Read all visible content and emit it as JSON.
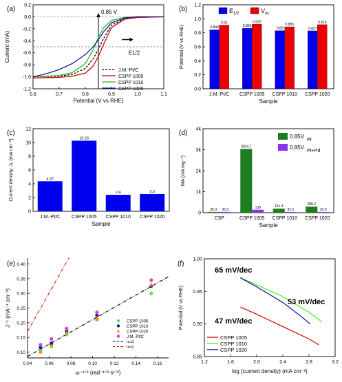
{
  "chart_data": [
    {
      "panel": "(a)",
      "type": "line",
      "xlabel": "Potential (V vs RHE)",
      "ylabel": "Current (mA)",
      "xlim": [
        0.6,
        1.1
      ],
      "ylim": [
        -1.2,
        0.2
      ],
      "x_ticks": [
        "0.6",
        "0.7",
        "0.8",
        "0.9",
        "1.0",
        "1.1"
      ],
      "y_ticks": [
        "0.2",
        "0.0",
        "-0.2",
        "-0.4",
        "-0.6",
        "-0.8",
        "-1.0",
        "-1.2"
      ],
      "annotations": [
        "0.85 V",
        "E1/2"
      ],
      "series": [
        {
          "name": "J.M.-Pt/C",
          "color": "#000000",
          "dash": true,
          "x": [
            0.6,
            0.7,
            0.75,
            0.8,
            0.83,
            0.85,
            0.87,
            0.9,
            0.95,
            1.0,
            1.1
          ],
          "y": [
            -1.0,
            -0.99,
            -0.96,
            -0.86,
            -0.7,
            -0.54,
            -0.36,
            -0.14,
            -0.03,
            -0.01,
            0.0
          ]
        },
        {
          "name": "CSPP 1005",
          "color": "#cc0000",
          "x": [
            0.6,
            0.7,
            0.75,
            0.8,
            0.83,
            0.85,
            0.87,
            0.9,
            0.95,
            1.0,
            1.1
          ],
          "y": [
            -1.02,
            -1.01,
            -0.99,
            -0.94,
            -0.82,
            -0.66,
            -0.46,
            -0.18,
            -0.04,
            -0.01,
            0.0
          ]
        },
        {
          "name": "CSPP 1010",
          "color": "#22bb22",
          "x": [
            0.6,
            0.7,
            0.75,
            0.8,
            0.83,
            0.85,
            0.87,
            0.9,
            0.95,
            1.0,
            1.1
          ],
          "y": [
            -1.0,
            -0.98,
            -0.93,
            -0.78,
            -0.55,
            -0.34,
            -0.18,
            -0.06,
            -0.01,
            0.0,
            0.0
          ]
        },
        {
          "name": "CSPP 1020",
          "color": "#1a1aa0",
          "x": [
            0.6,
            0.65,
            0.7,
            0.75,
            0.8,
            0.83,
            0.85,
            0.87,
            0.9,
            0.95,
            1.0,
            1.1
          ],
          "y": [
            -1.0,
            -0.95,
            -0.88,
            -0.78,
            -0.63,
            -0.5,
            -0.38,
            -0.25,
            -0.1,
            -0.02,
            0.0,
            0.0
          ]
        }
      ]
    },
    {
      "panel": "(b)",
      "type": "bar",
      "xlabel": "Sample",
      "ylabel": "Potential (V vs RHE)",
      "ylim": [
        0.0,
        1.2
      ],
      "y_ticks": [
        "0.0",
        "0.2",
        "0.4",
        "0.6",
        "0.8",
        "1.0",
        "1.2"
      ],
      "categories": [
        "J.M.-Pt/C",
        "CSPP 1005",
        "CSPP 1010",
        "CSPP 1020"
      ],
      "series": [
        {
          "name": "E1/2",
          "color": "#0000ee",
          "values": [
            0.844,
            0.865,
            0.83,
            0.827
          ],
          "labels": [
            "0.844",
            "0.865",
            "0.83",
            "0.827"
          ]
        },
        {
          "name": "Voc",
          "color": "#ee0000",
          "values": [
            0.91,
            0.922,
            0.885,
            0.916
          ],
          "labels": [
            "0.91",
            "0.922",
            "0.885",
            "0.916"
          ]
        }
      ]
    },
    {
      "panel": "(c)",
      "type": "bar",
      "xlabel": "Sample",
      "ylabel": "Current density, Jₖ (mA cm⁻²)",
      "ylim": [
        0,
        12
      ],
      "y_ticks": [
        "0",
        "2",
        "4",
        "6",
        "8",
        "10",
        "12"
      ],
      "categories": [
        "J.M.-Pt/C",
        "CSPP 1005",
        "CSPP 1010",
        "CSPP 1020"
      ],
      "series": [
        {
          "color": "#0000ee",
          "values": [
            4.37,
            10.26,
            2.4,
            2.5
          ],
          "labels": [
            "4.37",
            "10.26",
            "2.4",
            "2.5"
          ]
        }
      ]
    },
    {
      "panel": "(d)",
      "type": "bar",
      "xlabel": "Sample",
      "ylabel": "MA (mA mg⁻¹)",
      "ylim": [
        0,
        4000
      ],
      "y_ticks": [
        "0",
        "1k",
        "2k",
        "3k",
        "4k"
      ],
      "categories": [
        "CSP",
        "CSPP 1005",
        "CSPP 1010",
        "CSPP 1020"
      ],
      "series": [
        {
          "name": "0.85V",
          "subscript": "Pt",
          "color": "#1e7e1e",
          "values": [
            36.3,
            3034.7,
            191.4,
            288.2
          ],
          "labels": [
            "36.3",
            "3034.7",
            "191.4",
            "288.2"
          ]
        },
        {
          "name": "0.85V",
          "subscript": "Pt+Pd",
          "color": "#8833ee",
          "values": [
            36.3,
            139,
            32.5,
            33.9
          ],
          "labels": [
            "36.3",
            "139",
            "32.5",
            "33.9"
          ]
        }
      ]
    },
    {
      "panel": "(e)",
      "type": "scatter",
      "xlabel": "ω⁻¹ᐟ² (rad⁻¹ᐟ² s¹ᐟ²)",
      "ylabel": "J⁻¹ (mA⁻¹ cm⁻²)",
      "xlim": [
        0.04,
        0.17
      ],
      "ylim": [
        0.08,
        0.42
      ],
      "x_ticks": [
        "0.04",
        "0.06",
        "0.08",
        "0.10",
        "0.12",
        "0.14",
        "0.16"
      ],
      "y_ticks": [
        "0.10",
        "0.15",
        "0.20",
        "0.25",
        "0.30",
        "0.35",
        "0.40"
      ],
      "x": [
        0.052,
        0.062,
        0.076,
        0.104,
        0.154
      ],
      "series": [
        {
          "name": "CSPP 1005",
          "color": "#55dd55",
          "marker": "circle",
          "values": [
            0.105,
            0.125,
            0.16,
            0.21,
            0.3
          ]
        },
        {
          "name": "CSPP 1010",
          "color": "#1a1aa0",
          "marker": "circle",
          "values": [
            0.115,
            0.13,
            0.17,
            0.225,
            0.325
          ]
        },
        {
          "name": "CSPP 1020",
          "color": "#ff8800",
          "marker": "triangle",
          "values": [
            0.1,
            0.12,
            0.165,
            0.215,
            0.33
          ]
        },
        {
          "name": "J.M.-Pt/C",
          "color": "#cc44cc",
          "marker": "circle",
          "values": [
            0.125,
            0.145,
            0.18,
            0.235,
            0.345
          ]
        }
      ],
      "lines": [
        {
          "name": "n=4",
          "color": "#000000",
          "style": "dash-dot",
          "x": [
            0.04,
            0.17
          ],
          "y": [
            0.085,
            0.357
          ]
        },
        {
          "name": "n=2",
          "color": "#cc2200",
          "style": "dash-dot",
          "x": [
            0.04,
            0.078
          ],
          "y": [
            0.17,
            0.42
          ]
        }
      ]
    },
    {
      "panel": "(f)",
      "type": "line",
      "xlabel": "log (current density) (mA cm⁻²)",
      "ylabel": "Potential (V vs RHE)",
      "xlim": [
        1.2,
        3.2
      ],
      "ylim": [
        0.85,
        1.0
      ],
      "x_ticks": [
        "1.2",
        "1.6",
        "2.0",
        "2.4",
        "2.8",
        "3.2"
      ],
      "y_ticks": [
        "0.85",
        "0.90",
        "0.95",
        "1.00"
      ],
      "annotations": [
        {
          "text": "65 mV/dec",
          "color": "#1f5fa0"
        },
        {
          "text": "53 mV/dec",
          "color": "#55cc33"
        },
        {
          "text": "47 mV/dec",
          "color": "#cc2211"
        }
      ],
      "series": [
        {
          "name": "CSPP 1005",
          "color": "#dd1111",
          "x": [
            1.75,
            2.0,
            2.4,
            2.8,
            2.95
          ],
          "y": [
            0.926,
            0.915,
            0.896,
            0.877,
            0.868
          ]
        },
        {
          "name": "CSPP 1010",
          "color": "#55ee33",
          "x": [
            1.75,
            2.0,
            2.4,
            2.8,
            3.0
          ],
          "y": [
            0.971,
            0.96,
            0.942,
            0.918,
            0.903
          ]
        },
        {
          "name": "CSPP 1020",
          "color": "#1a1aa0",
          "x": [
            1.75,
            2.0,
            2.4,
            2.7,
            2.82
          ],
          "y": [
            0.971,
            0.957,
            0.933,
            0.91,
            0.9
          ]
        }
      ]
    }
  ]
}
